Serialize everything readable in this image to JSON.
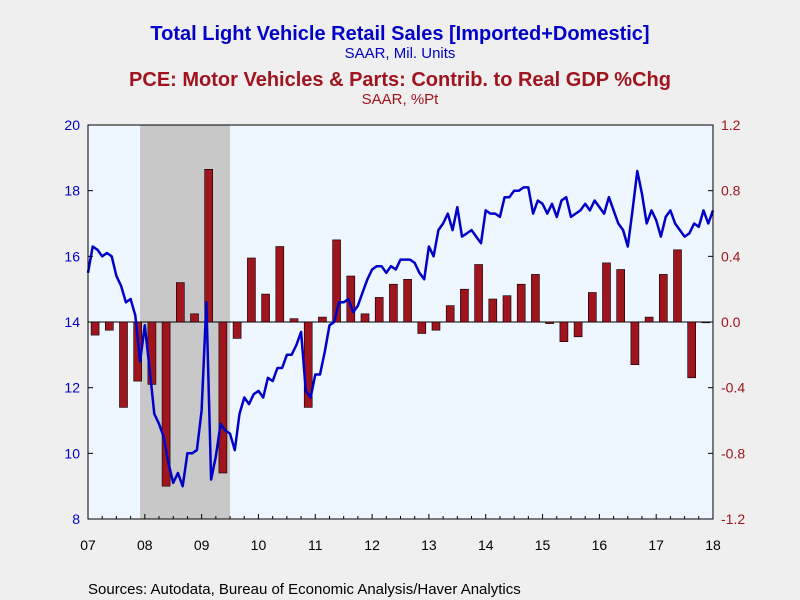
{
  "chart_data": {
    "type": "bar+line",
    "titles": [
      {
        "text": "Total Light Vehicle Retail Sales [Imported+Domestic]",
        "color": "#0000c8"
      },
      {
        "text": "SAAR, Mil. Units",
        "color": "#0000c8"
      },
      {
        "text": "PCE: Motor Vehicles & Parts: Contrib. to Real GDP %Chg",
        "color": "#a0141e"
      },
      {
        "text": "SAAR, %Pt",
        "color": "#a0141e"
      }
    ],
    "source": "Sources:  Autodata, Bureau of Economic Analysis/Haver Analytics",
    "x_ticks": [
      "07",
      "08",
      "09",
      "10",
      "11",
      "12",
      "13",
      "14",
      "15",
      "16",
      "17",
      "18"
    ],
    "x_range": [
      2007.0,
      2018.0
    ],
    "recession_shading": [
      2007.917,
      2009.5
    ],
    "left_axis": {
      "ylim": [
        8,
        20
      ],
      "ticks": [
        8,
        10,
        12,
        14,
        16,
        18,
        20
      ],
      "color": "#0000c8"
    },
    "right_axis": {
      "ylim": [
        -1.2,
        1.2
      ],
      "ticks": [
        "-1.2",
        "-0.8",
        "-0.4",
        "0.0",
        "0.4",
        "0.8",
        "1.2"
      ],
      "color": "#a0141e"
    },
    "series": [
      {
        "name": "Total Light Vehicle Retail Sales",
        "kind": "line",
        "axis": "left",
        "color": "#0000c8",
        "x": [
          2007.0,
          2007.083,
          2007.167,
          2007.25,
          2007.333,
          2007.417,
          2007.5,
          2007.583,
          2007.667,
          2007.75,
          2007.833,
          2007.917,
          2008.0,
          2008.083,
          2008.167,
          2008.25,
          2008.333,
          2008.417,
          2008.5,
          2008.583,
          2008.667,
          2008.75,
          2008.833,
          2008.917,
          2009.0,
          2009.083,
          2009.167,
          2009.25,
          2009.333,
          2009.417,
          2009.5,
          2009.583,
          2009.667,
          2009.75,
          2009.833,
          2009.917,
          2010.0,
          2010.083,
          2010.167,
          2010.25,
          2010.333,
          2010.417,
          2010.5,
          2010.583,
          2010.667,
          2010.75,
          2010.833,
          2010.917,
          2011.0,
          2011.083,
          2011.167,
          2011.25,
          2011.333,
          2011.417,
          2011.5,
          2011.583,
          2011.667,
          2011.75,
          2011.833,
          2011.917,
          2012.0,
          2012.083,
          2012.167,
          2012.25,
          2012.333,
          2012.417,
          2012.5,
          2012.583,
          2012.667,
          2012.75,
          2012.833,
          2012.917,
          2013.0,
          2013.083,
          2013.167,
          2013.25,
          2013.333,
          2013.417,
          2013.5,
          2013.583,
          2013.667,
          2013.75,
          2013.833,
          2013.917,
          2014.0,
          2014.083,
          2014.167,
          2014.25,
          2014.333,
          2014.417,
          2014.5,
          2014.583,
          2014.667,
          2014.75,
          2014.833,
          2014.917,
          2015.0,
          2015.083,
          2015.167,
          2015.25,
          2015.333,
          2015.417,
          2015.5,
          2015.583,
          2015.667,
          2015.75,
          2015.833,
          2015.917,
          2016.0,
          2016.083,
          2016.167,
          2016.25,
          2016.333,
          2016.417,
          2016.5,
          2016.583,
          2016.667,
          2016.75,
          2016.833,
          2016.917,
          2017.0,
          2017.083,
          2017.167,
          2017.25,
          2017.333,
          2017.417,
          2017.5,
          2017.583,
          2017.667,
          2017.75,
          2017.833,
          2017.917,
          2018.0
        ],
        "values": [
          15.5,
          16.3,
          16.2,
          16.0,
          16.1,
          16.0,
          15.4,
          15.1,
          14.6,
          14.7,
          14.2,
          12.8,
          13.9,
          12.6,
          11.2,
          10.9,
          10.5,
          9.7,
          9.1,
          9.4,
          9.0,
          10.0,
          10.0,
          10.1,
          11.3,
          14.6,
          9.2,
          9.9,
          10.9,
          10.7,
          10.6,
          10.1,
          11.2,
          11.7,
          11.5,
          11.8,
          11.9,
          11.7,
          12.3,
          12.2,
          12.6,
          12.6,
          13.0,
          13.0,
          13.3,
          13.7,
          11.9,
          11.7,
          12.4,
          12.4,
          13.1,
          13.9,
          14.0,
          14.6,
          14.6,
          14.7,
          14.3,
          14.5,
          14.9,
          15.3,
          15.6,
          15.7,
          15.7,
          15.5,
          15.7,
          15.6,
          15.9,
          15.9,
          15.9,
          15.8,
          15.5,
          15.3,
          16.3,
          16.0,
          16.8,
          17.0,
          17.3,
          16.8,
          17.5,
          16.6,
          16.7,
          16.8,
          16.6,
          16.4,
          17.4,
          17.3,
          17.3,
          17.2,
          17.8,
          17.8,
          18.0,
          18.0,
          18.1,
          18.1,
          17.3,
          17.7,
          17.6,
          17.3,
          17.6,
          17.2,
          17.7,
          17.8,
          17.2,
          17.3,
          17.4,
          17.6,
          17.4,
          17.7,
          17.5,
          17.3,
          17.8,
          17.4,
          17.0,
          16.8,
          16.3,
          17.4,
          18.6,
          17.9,
          17.0,
          17.4,
          17.1,
          16.6,
          17.2,
          17.4,
          17.0,
          16.8,
          16.6,
          16.7,
          17.0,
          16.9,
          17.4,
          17.0,
          17.4
        ]
      },
      {
        "name": "PCE: Motor Vehicles & Parts: Contrib. to Real GDP %Chg",
        "kind": "bar",
        "axis": "right",
        "color": "#a0141e",
        "x": [
          2007.125,
          2007.375,
          2007.625,
          2007.875,
          2008.125,
          2008.375,
          2008.625,
          2008.875,
          2009.125,
          2009.375,
          2009.625,
          2009.875,
          2010.125,
          2010.375,
          2010.625,
          2010.875,
          2011.125,
          2011.375,
          2011.625,
          2011.875,
          2012.125,
          2012.375,
          2012.625,
          2012.875,
          2013.125,
          2013.375,
          2013.625,
          2013.875,
          2014.125,
          2014.375,
          2014.625,
          2014.875,
          2015.125,
          2015.375,
          2015.625,
          2015.875,
          2016.125,
          2016.375,
          2016.625,
          2016.875,
          2017.125,
          2017.375,
          2017.625,
          2017.875
        ],
        "values": [
          -0.08,
          -0.05,
          -0.52,
          -0.36,
          -0.38,
          -1.0,
          0.24,
          0.05,
          0.93,
          -0.92,
          -0.1,
          0.39,
          0.17,
          0.46,
          0.02,
          -0.52,
          0.03,
          0.5,
          0.28,
          0.05,
          0.15,
          0.23,
          0.26,
          -0.07,
          -0.05,
          0.1,
          0.2,
          0.35,
          0.14,
          0.16,
          0.23,
          0.29,
          -0.01,
          -0.12,
          -0.09,
          0.18,
          0.36,
          0.32,
          -0.26,
          0.03,
          0.29,
          0.44,
          -0.34,
          0.0
        ]
      }
    ]
  }
}
